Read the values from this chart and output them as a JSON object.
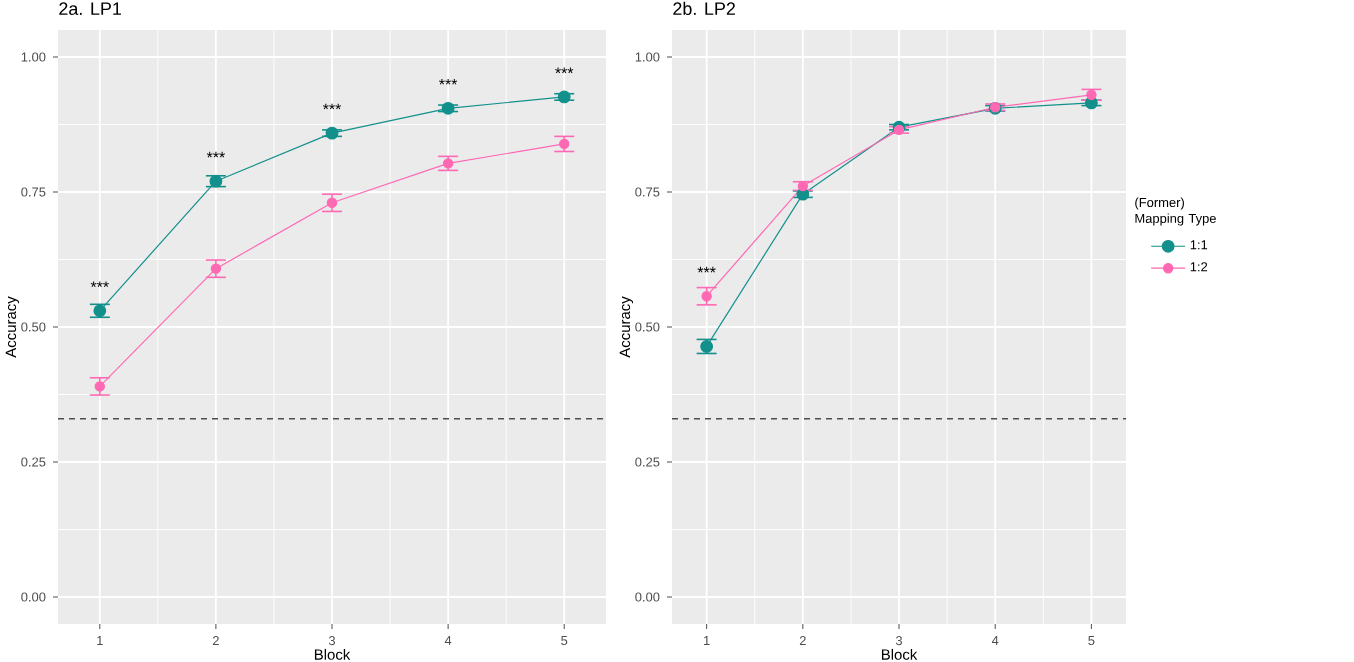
{
  "chart_data": [
    {
      "type": "line",
      "title": "2a. LP1",
      "xlabel": "Block",
      "ylabel": "Accuracy",
      "x": [
        1,
        2,
        3,
        4,
        5
      ],
      "xlim": [
        0.64,
        5.36
      ],
      "xticks": [
        1,
        2,
        3,
        4,
        5
      ],
      "ylim": [
        -0.05,
        1.05
      ],
      "yticks": [
        {
          "value": 0,
          "label": "0.00"
        },
        {
          "value": 0.25,
          "label": "0.25"
        },
        {
          "value": 0.5,
          "label": "0.50"
        },
        {
          "value": 0.75,
          "label": "0.75"
        },
        {
          "value": 1,
          "label": "1.00"
        }
      ],
      "grid": true,
      "marker": "circle",
      "line_style": "solid",
      "series": [
        {
          "color": "#13908c",
          "values": [
            0.53,
            0.77,
            0.859,
            0.905,
            0.926
          ],
          "errors": [
            0.012,
            0.01,
            0.006,
            0.006,
            0.006
          ]
        },
        {
          "color": "#ff69b4",
          "values": [
            0.39,
            0.608,
            0.73,
            0.803,
            0.839
          ],
          "errors": [
            0.016,
            0.016,
            0.016,
            0.013,
            0.014
          ]
        }
      ],
      "ref_lines": [
        {
          "axis": "y",
          "value": 0.33,
          "color": "#4d4d4d",
          "line_style": "dashed"
        }
      ],
      "annotations": [
        {
          "text": "***",
          "x": 1,
          "y": 0.53
        },
        {
          "text": "***",
          "x": 2,
          "y": 0.77
        },
        {
          "text": "***",
          "x": 3,
          "y": 0.859
        },
        {
          "text": "***",
          "x": 4,
          "y": 0.905
        },
        {
          "text": "***",
          "x": 5,
          "y": 0.926
        }
      ]
    },
    {
      "type": "line",
      "title": "2b. LP2",
      "xlabel": "Block",
      "ylabel": "Accuracy",
      "x": [
        1,
        2,
        3,
        4,
        5
      ],
      "xlim": [
        0.64,
        5.36
      ],
      "xticks": [
        1,
        2,
        3,
        4,
        5
      ],
      "ylim": [
        -0.05,
        1.05
      ],
      "yticks": [
        {
          "value": 0,
          "label": "0.00"
        },
        {
          "value": 0.25,
          "label": "0.25"
        },
        {
          "value": 0.5,
          "label": "0.50"
        },
        {
          "value": 0.75,
          "label": "0.75"
        },
        {
          "value": 1,
          "label": "1.00"
        }
      ],
      "grid": true,
      "marker": "circle",
      "line_style": "solid",
      "legend": "right",
      "legend_title": "(Former) Mapping Type",
      "series": [
        {
          "name": "1:1",
          "color": "#13908c",
          "values": [
            0.464,
            0.746,
            0.87,
            0.905,
            0.915
          ],
          "errors": [
            0.013,
            0.006,
            0.005,
            0.005,
            0.005
          ]
        },
        {
          "name": "1:2",
          "color": "#ff69b4",
          "values": [
            0.557,
            0.761,
            0.865,
            0.907,
            0.93
          ],
          "errors": [
            0.016,
            0.008,
            0.006,
            0.006,
            0.01
          ]
        }
      ],
      "ref_lines": [
        {
          "axis": "y",
          "value": 0.33,
          "color": "#4d4d4d",
          "line_style": "dashed"
        }
      ],
      "annotations": [
        {
          "text": "***",
          "x": 1,
          "y": 0.557
        }
      ]
    }
  ]
}
